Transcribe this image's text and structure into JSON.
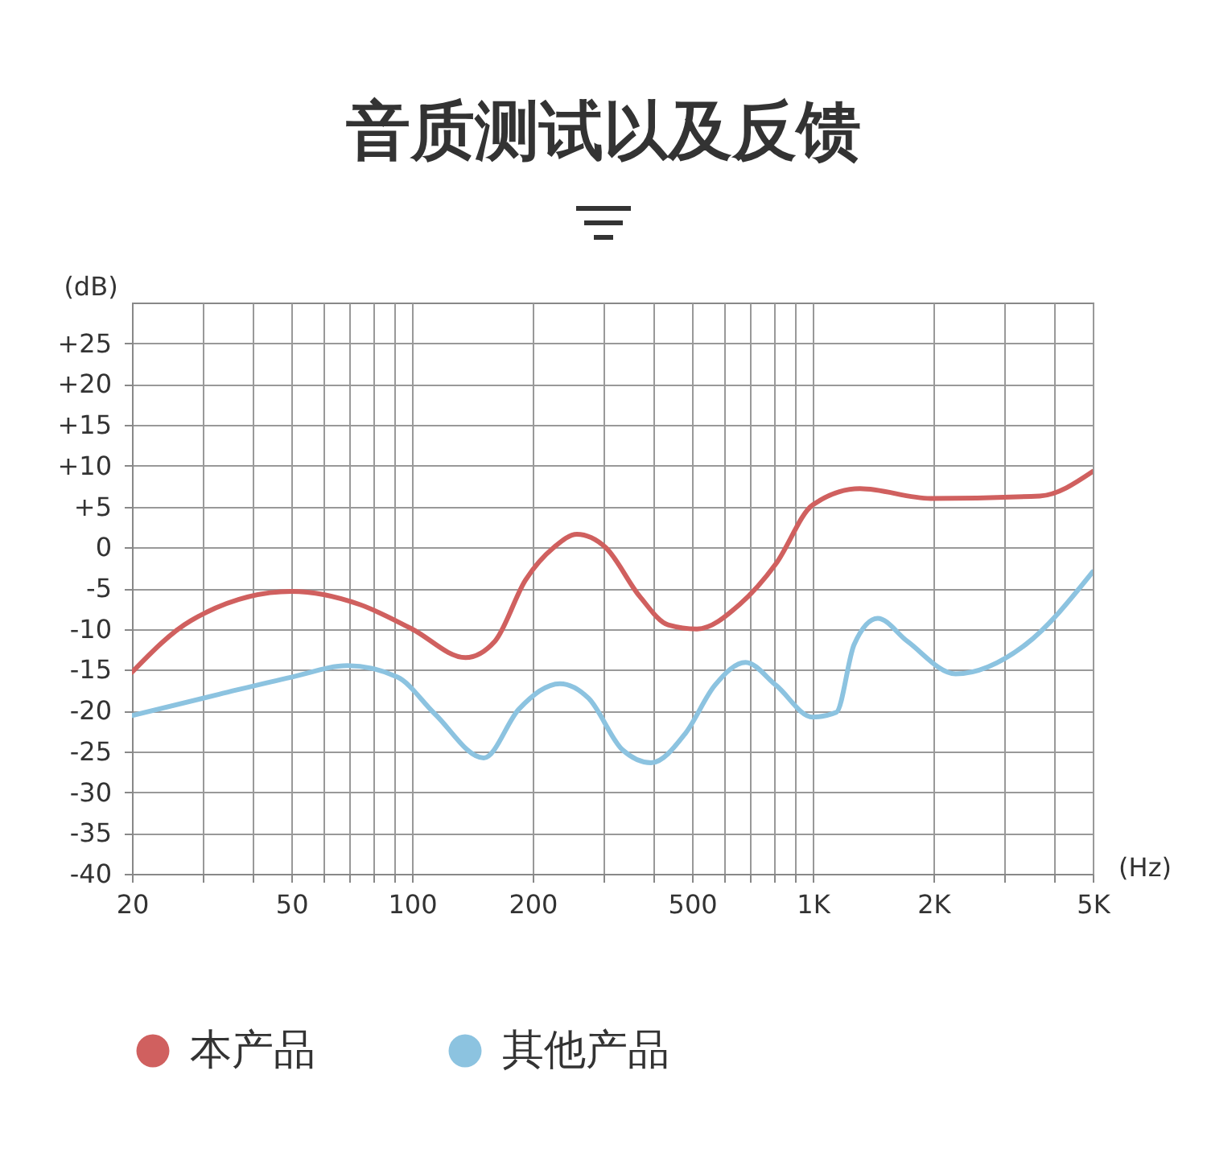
{
  "chart_data": {
    "type": "line",
    "title": "音质测试以及反馈",
    "xlabel": "(Hz)",
    "ylabel": "(dB)",
    "log": "x",
    "grid": true,
    "legend": "bottom",
    "marker": "none",
    "line_style": "solid",
    "xlim": [
      20,
      5000
    ],
    "xticks": [
      20,
      {
        "value": 30,
        "label": null
      },
      {
        "value": 40,
        "label": null
      },
      50,
      {
        "value": 60,
        "label": null
      },
      {
        "value": 70,
        "label": null
      },
      {
        "value": 80,
        "label": null
      },
      {
        "value": 90,
        "label": null
      },
      100,
      200,
      {
        "value": 300,
        "label": null
      },
      {
        "value": 400,
        "label": null
      },
      500,
      {
        "value": 600,
        "label": null
      },
      {
        "value": 700,
        "label": null
      },
      {
        "value": 800,
        "label": null
      },
      {
        "value": 900,
        "label": null
      },
      {
        "value": 1000,
        "label": "1K"
      },
      {
        "value": 2000,
        "label": "2K"
      },
      {
        "value": 3000,
        "label": null
      },
      {
        "value": 4000,
        "label": null
      },
      {
        "value": 5000,
        "label": "5K"
      }
    ],
    "ylim": [
      -40,
      30
    ],
    "yticks": [
      -40,
      -35,
      -30,
      -25,
      -20,
      -15,
      -10,
      -5,
      0,
      {
        "value": 5,
        "label": "+5"
      },
      {
        "value": 10,
        "label": "+10"
      },
      {
        "value": 15,
        "label": "+15"
      },
      {
        "value": 20,
        "label": "+20"
      },
      {
        "value": 25,
        "label": "+25"
      }
    ],
    "series": [
      {
        "name": "本产品",
        "color": "#d0605f",
        "x": [
          20,
          28,
          50,
          74,
          100,
          136,
          161,
          192,
          226,
          258,
          304,
          370,
          436,
          514,
          657,
          810,
          1000,
          1312,
          1970,
          3690,
          5000
        ],
        "values": [
          -15.3,
          -9,
          -5.4,
          -7,
          -10,
          -13.5,
          -11.5,
          -4,
          0,
          1.6,
          0,
          -6,
          -9.5,
          -10,
          -7,
          -2,
          5.2,
          7.2,
          6,
          6.3,
          9.3
        ]
      },
      {
        "name": "其他产品",
        "color": "#8cc3e0",
        "x": [
          20,
          33,
          50,
          69,
          92,
          114,
          151,
          185,
          234,
          276,
          335,
          395,
          481,
          570,
          680,
          810,
          1000,
          1146,
          1269,
          1453,
          1722,
          2274,
          3400,
          5000
        ],
        "values": [
          -20.6,
          -18,
          -15.9,
          -14.5,
          -15.9,
          -20.4,
          -25.8,
          -19.8,
          -16.7,
          -18.5,
          -24.8,
          -26.4,
          -22.8,
          -16.9,
          -14.1,
          -16.9,
          -20.8,
          -20.2,
          -11.9,
          -8.7,
          -11.5,
          -15.5,
          -11.9,
          -3
        ]
      }
    ]
  }
}
